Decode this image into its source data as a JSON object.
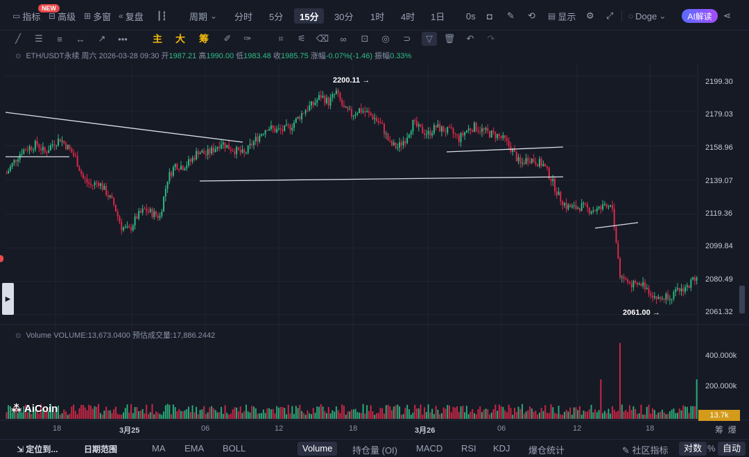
{
  "toolbar": {
    "indicators": "指标",
    "new_badge": "NEW",
    "advanced": "高级",
    "multi_window": "多窗",
    "replay": "复盘",
    "period": "周期",
    "periods": [
      "分时",
      "5分",
      "15分",
      "30分",
      "1时",
      "4时",
      "1日"
    ],
    "active_period": "15分",
    "countdown": "0s",
    "display": "显示",
    "theme": "Doge",
    "ai_button": "AI解读"
  },
  "drawing_tools": {
    "main": "主",
    "big": "大",
    "chip": "筹"
  },
  "symbol_info": {
    "pair": "ETH/USDT永续",
    "weekday": "周六",
    "datetime": "2026-03-28 09:30",
    "open_label": "开",
    "open": "1987.21",
    "high_label": "高",
    "high": "1990.00",
    "low_label": "低",
    "low": "1983.48",
    "close_label": "收",
    "close": "1985.75",
    "change_label": "涨幅",
    "change": "-0.07%(-1.46)",
    "amplitude_label": "振幅",
    "amplitude": "0.33%"
  },
  "volume_info": {
    "label": "Volume",
    "value": "VOLUME:13,673.0400",
    "estimate": "预估成交量:17,886.2442"
  },
  "price_axis": [
    "2199.30",
    "2179.03",
    "2158.96",
    "2139.07",
    "2119.36",
    "2099.84",
    "2080.49",
    "2061.32"
  ],
  "volume_axis": [
    "400.000k",
    "200.000k"
  ],
  "current_volume": "13.7k",
  "high_marker": "2200.11",
  "low_marker": "2061.00",
  "time_axis": [
    "18",
    "3月25",
    "06",
    "12",
    "18",
    "3月26",
    "06",
    "12",
    "18"
  ],
  "side_labels": [
    "筹",
    "爆"
  ],
  "watermark": "AiCoin",
  "bottom": {
    "locate": "定位到...",
    "date_range": "日期范围",
    "indicators": [
      "MA",
      "EMA",
      "BOLL",
      "Volume",
      "持仓量 (OI)",
      "MACD",
      "RSI",
      "KDJ",
      "爆仓统计"
    ],
    "active_indicator": "Volume",
    "community": "社区指标",
    "log": "对数",
    "percent": "%",
    "auto": "自动"
  },
  "colors": {
    "up": "#2ebd85",
    "down": "#e0294a",
    "background": "#161a25",
    "accent": "#f0b90b"
  },
  "chart_data": {
    "type": "candlestick",
    "symbol": "ETH/USDT永续",
    "interval": "15分",
    "ylim": [
      2058,
      2204
    ],
    "price_ticks": [
      2199.3,
      2179.03,
      2158.96,
      2139.07,
      2119.36,
      2099.84,
      2080.49,
      2061.32
    ],
    "volume_ticks": [
      400000,
      200000
    ],
    "x_ticks": [
      "18",
      "3月25",
      "06",
      "12",
      "18",
      "3月26",
      "06",
      "12",
      "18"
    ],
    "annotated_high": 2200.11,
    "annotated_low": 2061.0,
    "last_close": 1985.75,
    "close_path": [
      [
        0,
        2143
      ],
      [
        4,
        2150
      ],
      [
        8,
        2156
      ],
      [
        12,
        2158
      ],
      [
        16,
        2160
      ],
      [
        20,
        2155
      ],
      [
        24,
        2160
      ],
      [
        28,
        2163
      ],
      [
        32,
        2158
      ],
      [
        36,
        2152
      ],
      [
        40,
        2140
      ],
      [
        44,
        2136
      ],
      [
        48,
        2138
      ],
      [
        52,
        2132
      ],
      [
        56,
        2125
      ],
      [
        60,
        2112
      ],
      [
        64,
        2110
      ],
      [
        68,
        2118
      ],
      [
        72,
        2122
      ],
      [
        76,
        2120
      ],
      [
        80,
        2118
      ],
      [
        84,
        2140
      ],
      [
        88,
        2148
      ],
      [
        92,
        2147
      ],
      [
        96,
        2150
      ],
      [
        100,
        2156
      ],
      [
        104,
        2154
      ],
      [
        108,
        2157
      ],
      [
        112,
        2161
      ],
      [
        116,
        2158
      ],
      [
        120,
        2156
      ],
      [
        124,
        2154
      ],
      [
        128,
        2160
      ],
      [
        132,
        2165
      ],
      [
        136,
        2170
      ],
      [
        140,
        2168
      ],
      [
        144,
        2168
      ],
      [
        148,
        2170
      ],
      [
        152,
        2175
      ],
      [
        156,
        2180
      ],
      [
        160,
        2183
      ],
      [
        164,
        2188
      ],
      [
        168,
        2184
      ],
      [
        172,
        2190
      ],
      [
        176,
        2180
      ],
      [
        180,
        2177
      ],
      [
        184,
        2180
      ],
      [
        188,
        2178
      ],
      [
        192,
        2175
      ],
      [
        196,
        2170
      ],
      [
        200,
        2160
      ],
      [
        204,
        2158
      ],
      [
        208,
        2163
      ],
      [
        212,
        2172
      ],
      [
        216,
        2168
      ],
      [
        220,
        2166
      ],
      [
        224,
        2170
      ],
      [
        228,
        2168
      ],
      [
        232,
        2167
      ],
      [
        236,
        2163
      ],
      [
        240,
        2168
      ],
      [
        244,
        2170
      ],
      [
        248,
        2168
      ],
      [
        252,
        2166
      ],
      [
        256,
        2165
      ],
      [
        260,
        2162
      ],
      [
        264,
        2156
      ],
      [
        268,
        2148
      ],
      [
        272,
        2152
      ],
      [
        276,
        2150
      ],
      [
        280,
        2148
      ],
      [
        284,
        2140
      ],
      [
        288,
        2130
      ],
      [
        292,
        2124
      ],
      [
        296,
        2123
      ],
      [
        300,
        2124
      ],
      [
        304,
        2122
      ],
      [
        308,
        2122
      ],
      [
        312,
        2123
      ],
      [
        316,
        2123
      ],
      [
        320,
        2084
      ],
      [
        324,
        2080
      ],
      [
        328,
        2078
      ],
      [
        332,
        2079
      ],
      [
        336,
        2074
      ],
      [
        340,
        2070
      ],
      [
        344,
        2072
      ],
      [
        348,
        2073
      ],
      [
        352,
        2076
      ],
      [
        356,
        2078
      ],
      [
        360,
        2085
      ]
    ],
    "volume_spikes": [
      [
        320,
        480000
      ],
      [
        310,
        250000
      ],
      [
        360,
        250000
      ]
    ]
  }
}
